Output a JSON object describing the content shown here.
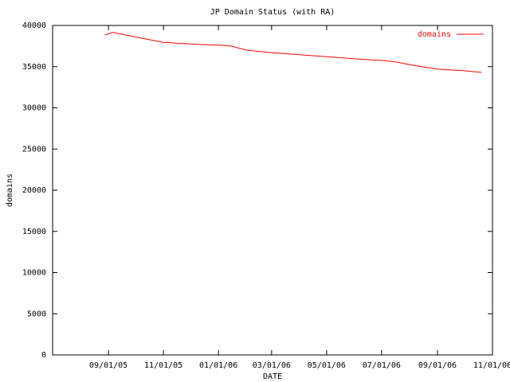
{
  "chart_data": {
    "type": "line",
    "title": "JP Domain Status (with RA)",
    "x_label": "DATE",
    "y_label": "domains",
    "x": [
      "08/28/05",
      "09/06/05",
      "10/01/05",
      "11/01/05",
      "12/01/05",
      "01/01/06",
      "01/15/06",
      "02/01/06",
      "03/01/06",
      "04/01/06",
      "05/01/06",
      "06/01/06",
      "07/01/06",
      "07/15/06",
      "08/01/06",
      "09/01/06",
      "10/01/06",
      "10/20/06"
    ],
    "series": [
      {
        "name": "domains",
        "color": "#ff0000",
        "values": [
          38850,
          39150,
          38600,
          37950,
          37750,
          37600,
          37500,
          37000,
          36700,
          36450,
          36200,
          35950,
          35750,
          35600,
          35250,
          34700,
          34500,
          34300
        ]
      }
    ],
    "xlim": [
      "07/01/05",
      "11/01/06"
    ],
    "xticks": [
      "09/01/05",
      "11/01/05",
      "01/01/06",
      "03/01/06",
      "05/01/06",
      "07/01/06",
      "09/01/06",
      "11/01/06"
    ],
    "ylim": [
      0,
      40000
    ],
    "yticks": [
      0,
      5000,
      10000,
      15000,
      20000,
      25000,
      30000,
      35000,
      40000
    ],
    "legend": "top-right"
  }
}
